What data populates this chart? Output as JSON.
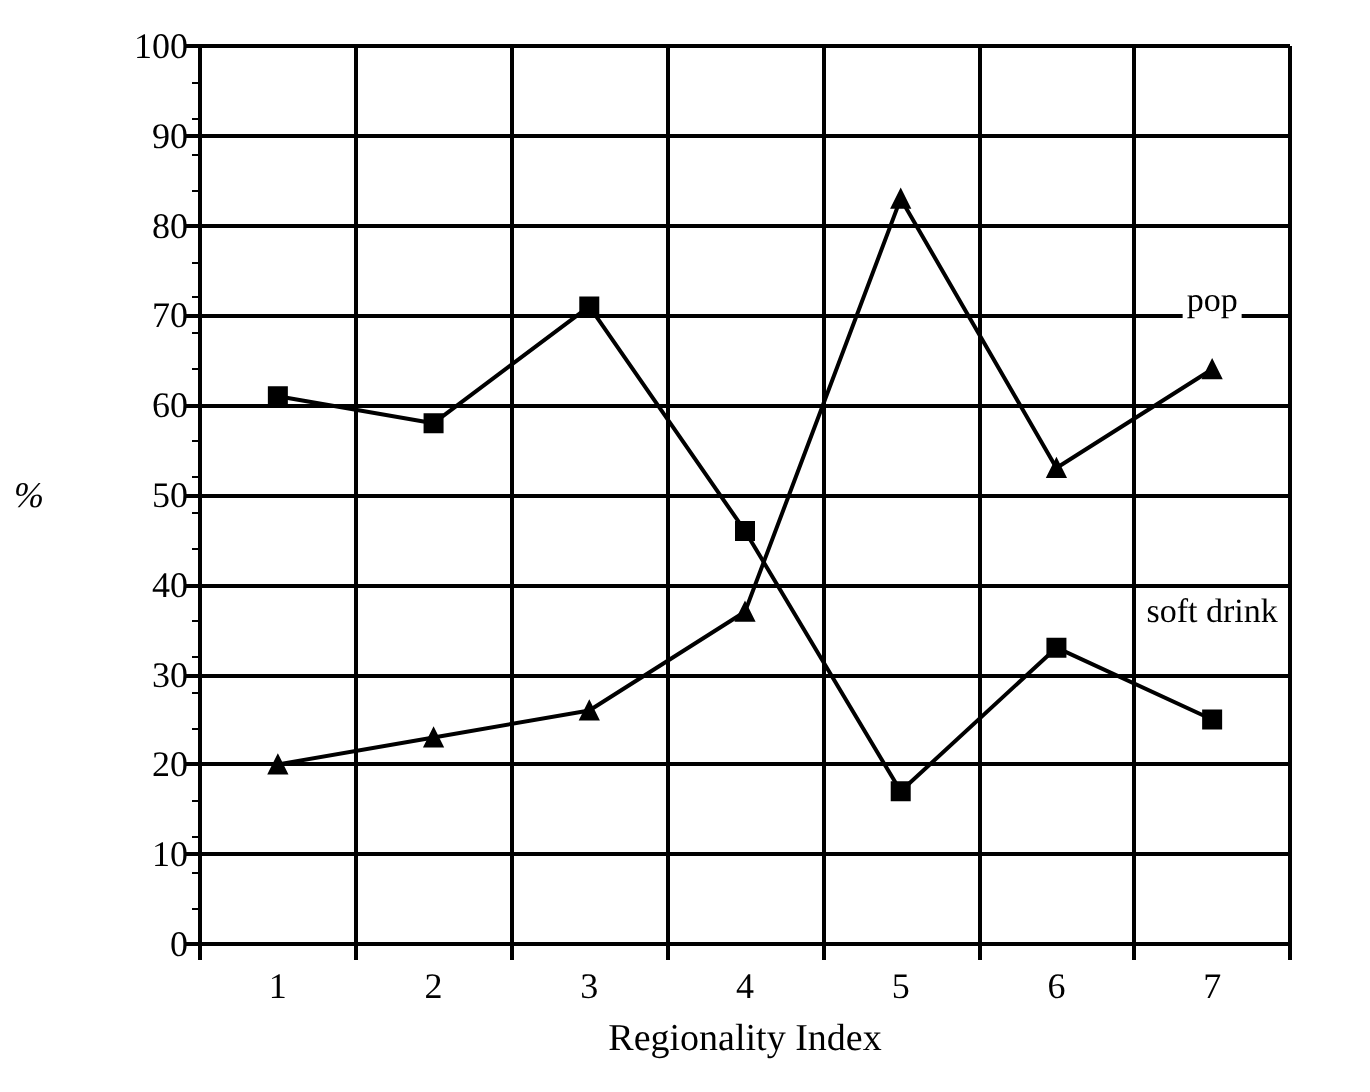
{
  "chart_data": {
    "type": "line",
    "xlabel": "Regionality Index",
    "ylabel": "%",
    "categories": [
      "1",
      "2",
      "3",
      "4",
      "5",
      "6",
      "7"
    ],
    "series": [
      {
        "name": "pop",
        "color": "#000000",
        "marker": "triangle",
        "values": [
          20,
          23,
          26,
          37,
          83,
          53,
          64
        ]
      },
      {
        "name": "soft drink",
        "color": "#000000",
        "marker": "square",
        "values": [
          61,
          58,
          71,
          46,
          17,
          33,
          25
        ]
      }
    ],
    "ylim": [
      0,
      100
    ],
    "yticks": [
      0,
      10,
      20,
      30,
      40,
      50,
      60,
      70,
      80,
      90,
      100
    ],
    "grid": true,
    "legend": false,
    "line_style": "solid"
  }
}
